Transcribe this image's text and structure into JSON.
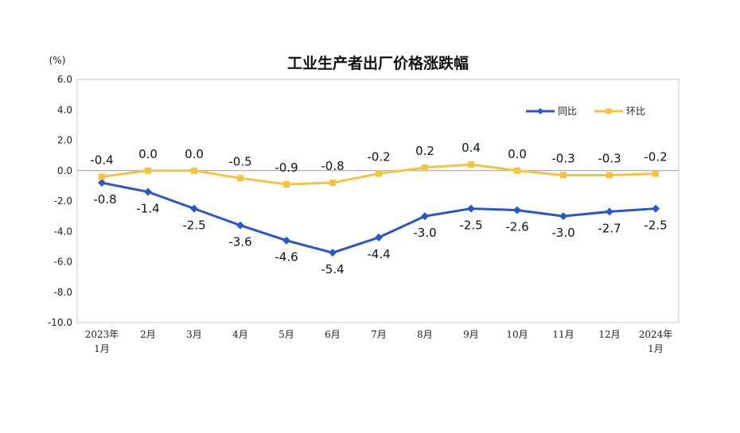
{
  "chart_data": {
    "type": "line",
    "title": "工业生产者出厂价格涨跌幅",
    "unit_label": "(%)",
    "ylim": [
      -10.0,
      6.0
    ],
    "yticks": [
      "6.0",
      "4.0",
      "2.0",
      "0.0",
      "-2.0",
      "-4.0",
      "-6.0",
      "-8.0",
      "-10.0"
    ],
    "ytick_values": [
      6,
      4,
      2,
      0,
      -2,
      -4,
      -6,
      -8,
      -10
    ],
    "categories": [
      [
        "2023年",
        "1月"
      ],
      [
        "2月"
      ],
      [
        "3月"
      ],
      [
        "4月"
      ],
      [
        "5月"
      ],
      [
        "6月"
      ],
      [
        "7月"
      ],
      [
        "8月"
      ],
      [
        "9月"
      ],
      [
        "10月"
      ],
      [
        "11月"
      ],
      [
        "12月"
      ],
      [
        "2024年",
        "1月"
      ]
    ],
    "legend_position": "top-right",
    "grid": false,
    "series": [
      {
        "name": "同比",
        "color": "#2a56c6",
        "marker": "diamond",
        "values": [
          -0.8,
          -1.4,
          -2.5,
          -3.6,
          -4.6,
          -5.4,
          -4.4,
          -3.0,
          -2.5,
          -2.6,
          -3.0,
          -2.7,
          -2.5
        ],
        "labels": [
          "-0.8",
          "-1.4",
          "-2.5",
          "-3.6",
          "-4.6",
          "-5.4",
          "-4.4",
          "-3.0",
          "-2.5",
          "-2.6",
          "-3.0",
          "-2.7",
          "-2.5"
        ]
      },
      {
        "name": "环比",
        "color": "#f5c342",
        "marker": "square",
        "values": [
          -0.4,
          0.0,
          0.0,
          -0.5,
          -0.9,
          -0.8,
          -0.2,
          0.2,
          0.4,
          0.0,
          -0.3,
          -0.3,
          -0.2
        ],
        "labels": [
          "-0.4",
          "0.0",
          "0.0",
          "-0.5",
          "-0.9",
          "-0.8",
          "-0.2",
          "0.2",
          "0.4",
          "0.0",
          "-0.3",
          "-0.3",
          "-0.2"
        ]
      }
    ],
    "colors": {
      "axis": "#9a9a9a",
      "frame": "#c8c8c8"
    }
  }
}
